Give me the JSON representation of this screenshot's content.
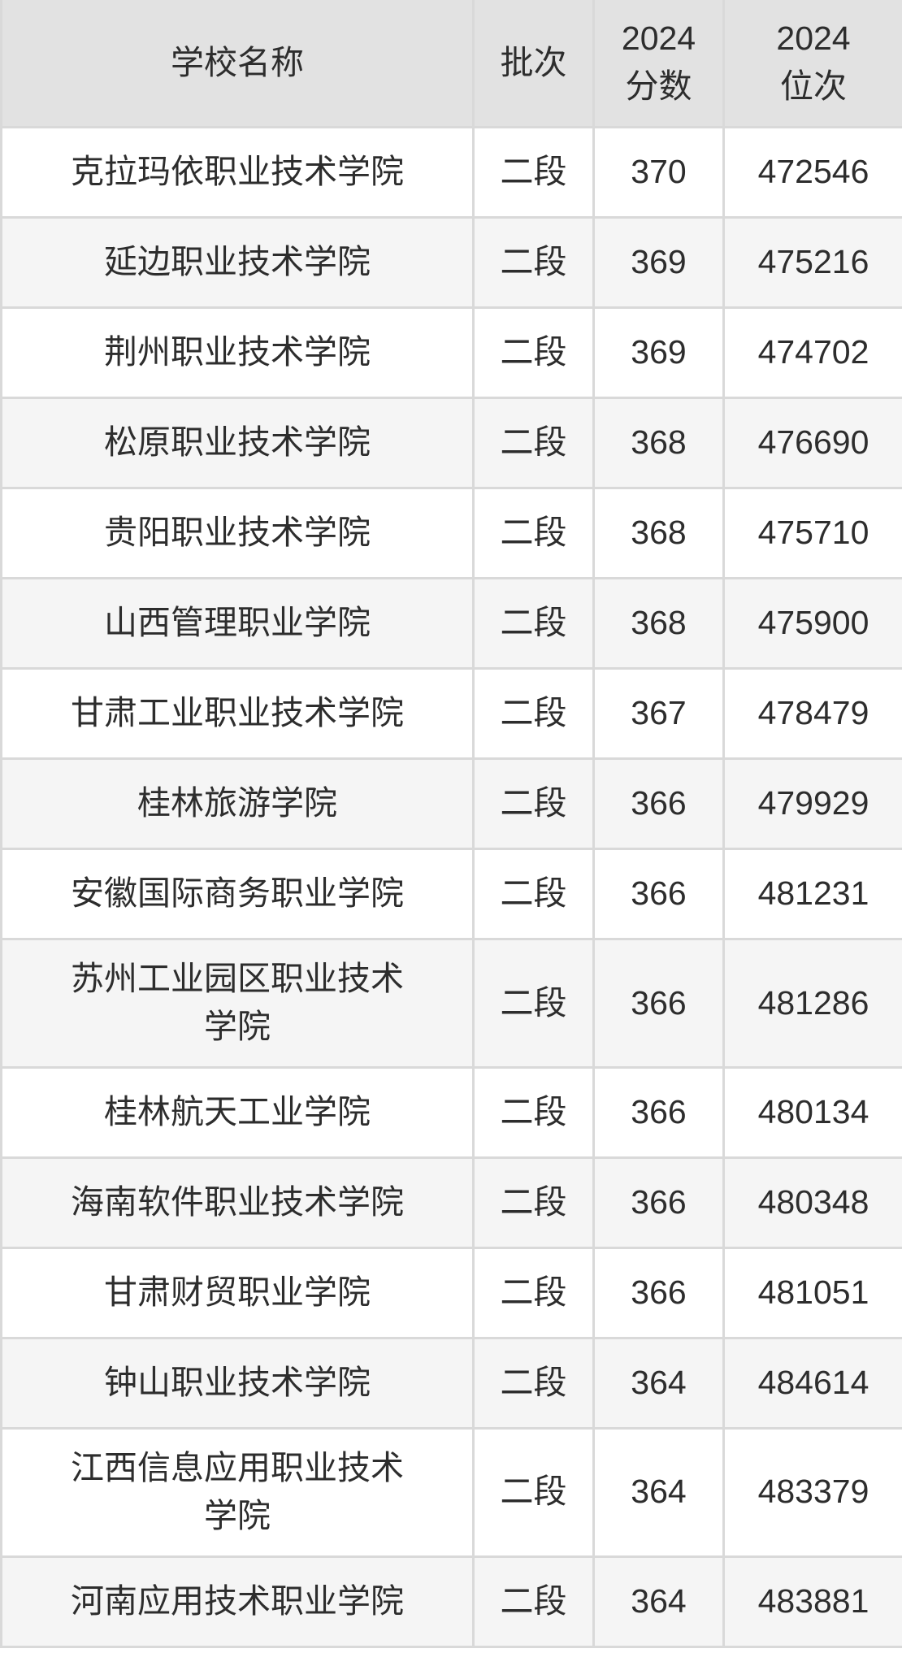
{
  "colors": {
    "header_bg": "#e2e2e2",
    "row_bg": "#ffffff",
    "row_alt_bg": "#f5f5f5",
    "border": "#d9d9d9",
    "text": "#2d2d2d"
  },
  "table": {
    "columns": [
      {
        "key": "school",
        "label": "学校名称"
      },
      {
        "key": "batch",
        "label": "批次"
      },
      {
        "key": "score",
        "label": "2024\n分数"
      },
      {
        "key": "rank",
        "label": "2024\n位次"
      }
    ],
    "rows": [
      {
        "school": "克拉玛依职业技术学院",
        "batch": "二段",
        "score": 370,
        "rank": 472546
      },
      {
        "school": "延边职业技术学院",
        "batch": "二段",
        "score": 369,
        "rank": 475216
      },
      {
        "school": "荆州职业技术学院",
        "batch": "二段",
        "score": 369,
        "rank": 474702
      },
      {
        "school": "松原职业技术学院",
        "batch": "二段",
        "score": 368,
        "rank": 476690
      },
      {
        "school": "贵阳职业技术学院",
        "batch": "二段",
        "score": 368,
        "rank": 475710
      },
      {
        "school": "山西管理职业学院",
        "batch": "二段",
        "score": 368,
        "rank": 475900
      },
      {
        "school": "甘肃工业职业技术学院",
        "batch": "二段",
        "score": 367,
        "rank": 478479
      },
      {
        "school": "桂林旅游学院",
        "batch": "二段",
        "score": 366,
        "rank": 479929
      },
      {
        "school": "安徽国际商务职业学院",
        "batch": "二段",
        "score": 366,
        "rank": 481231
      },
      {
        "school": "苏州工业园区职业技术学院",
        "batch": "二段",
        "score": 366,
        "rank": 481286
      },
      {
        "school": "桂林航天工业学院",
        "batch": "二段",
        "score": 366,
        "rank": 480134
      },
      {
        "school": "海南软件职业技术学院",
        "batch": "二段",
        "score": 366,
        "rank": 480348
      },
      {
        "school": "甘肃财贸职业学院",
        "batch": "二段",
        "score": 366,
        "rank": 481051
      },
      {
        "school": "钟山职业技术学院",
        "batch": "二段",
        "score": 364,
        "rank": 484614
      },
      {
        "school": "江西信息应用职业技术学院",
        "batch": "二段",
        "score": 364,
        "rank": 483379
      },
      {
        "school": "河南应用技术职业学院",
        "batch": "二段",
        "score": 364,
        "rank": 483881
      }
    ]
  },
  "chart_data": {
    "type": "table",
    "columns": [
      "学校名称",
      "批次",
      "2024分数",
      "2024位次"
    ],
    "rows": [
      [
        "克拉玛依职业技术学院",
        "二段",
        370,
        472546
      ],
      [
        "延边职业技术学院",
        "二段",
        369,
        475216
      ],
      [
        "荆州职业技术学院",
        "二段",
        369,
        474702
      ],
      [
        "松原职业技术学院",
        "二段",
        368,
        476690
      ],
      [
        "贵阳职业技术学院",
        "二段",
        368,
        475710
      ],
      [
        "山西管理职业学院",
        "二段",
        368,
        475900
      ],
      [
        "甘肃工业职业技术学院",
        "二段",
        367,
        478479
      ],
      [
        "桂林旅游学院",
        "二段",
        366,
        479929
      ],
      [
        "安徽国际商务职业学院",
        "二段",
        366,
        481231
      ],
      [
        "苏州工业园区职业技术学院",
        "二段",
        366,
        481286
      ],
      [
        "桂林航天工业学院",
        "二段",
        366,
        480134
      ],
      [
        "海南软件职业技术学院",
        "二段",
        366,
        480348
      ],
      [
        "甘肃财贸职业学院",
        "二段",
        366,
        481051
      ],
      [
        "钟山职业技术学院",
        "二段",
        364,
        484614
      ],
      [
        "江西信息应用职业技术学院",
        "二段",
        364,
        483379
      ],
      [
        "河南应用技术职业学院",
        "二段",
        364,
        483881
      ]
    ]
  }
}
